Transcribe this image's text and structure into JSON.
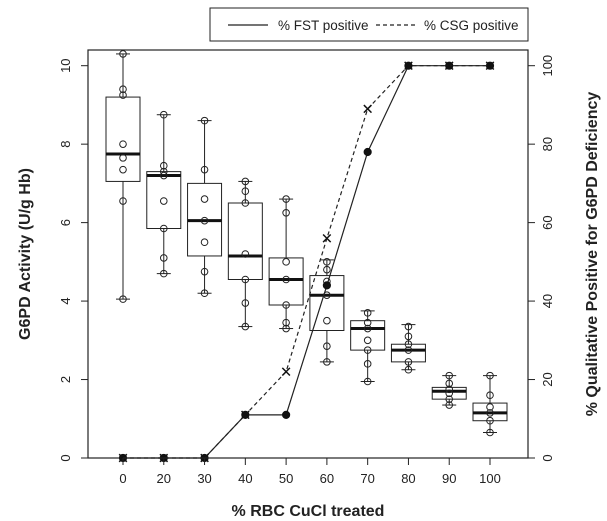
{
  "chart_data": {
    "type": "boxplot",
    "title": "",
    "xlabel": "% RBC CuCl treated",
    "ylabel_left": "G6PD Activity (U/g Hb)",
    "ylabel_right": "% Qualitative Positive for G6PD Deficiency",
    "categories": [
      "0",
      "20",
      "30",
      "40",
      "50",
      "60",
      "70",
      "80",
      "90",
      "100"
    ],
    "y_left_lim": [
      0,
      10.4
    ],
    "y_left_ticks": [
      "0",
      "2",
      "4",
      "6",
      "8",
      "10"
    ],
    "y_right_lim": [
      0,
      104
    ],
    "y_right_ticks": [
      "0",
      "20",
      "40",
      "60",
      "80",
      "100"
    ],
    "grid": false,
    "legend_position": "top-right",
    "boxes": [
      {
        "category": "0",
        "min": 4.05,
        "q1": 7.05,
        "median": 7.75,
        "q3": 9.2,
        "max": 10.3,
        "points": [
          4.05,
          6.55,
          7.35,
          7.65,
          8.0,
          9.25,
          9.4,
          10.3
        ]
      },
      {
        "category": "20",
        "min": 4.7,
        "q1": 5.85,
        "median": 7.2,
        "q3": 7.3,
        "max": 8.75,
        "points": [
          4.7,
          5.1,
          5.85,
          6.55,
          7.2,
          7.3,
          7.45,
          8.75
        ]
      },
      {
        "category": "30",
        "min": 4.2,
        "q1": 5.15,
        "median": 6.05,
        "q3": 7.0,
        "max": 8.6,
        "points": [
          4.2,
          4.75,
          5.5,
          6.05,
          6.6,
          7.35,
          8.6
        ]
      },
      {
        "category": "40",
        "min": 3.35,
        "q1": 4.55,
        "median": 5.15,
        "q3": 6.5,
        "max": 7.05,
        "points": [
          3.35,
          3.95,
          4.55,
          5.2,
          6.5,
          6.8,
          7.05
        ]
      },
      {
        "category": "50",
        "min": 3.3,
        "q1": 3.9,
        "median": 4.55,
        "q3": 5.1,
        "max": 6.6,
        "points": [
          3.3,
          3.45,
          3.9,
          4.55,
          5.0,
          6.25,
          6.6
        ]
      },
      {
        "category": "60",
        "min": 2.45,
        "q1": 3.25,
        "median": 4.15,
        "q3": 4.65,
        "max": 5.05,
        "points": [
          2.45,
          2.85,
          3.5,
          4.15,
          4.5,
          4.8,
          5.0
        ]
      },
      {
        "category": "70",
        "min": 1.95,
        "q1": 2.75,
        "median": 3.3,
        "q3": 3.5,
        "max": 3.75,
        "points": [
          1.95,
          2.4,
          2.75,
          3.0,
          3.3,
          3.45,
          3.7
        ]
      },
      {
        "category": "80",
        "min": 2.25,
        "q1": 2.45,
        "median": 2.75,
        "q3": 2.9,
        "max": 3.4,
        "points": [
          2.25,
          2.45,
          2.75,
          2.9,
          3.1,
          3.35
        ]
      },
      {
        "category": "90",
        "min": 1.35,
        "q1": 1.5,
        "median": 1.7,
        "q3": 1.8,
        "max": 2.1,
        "points": [
          1.35,
          1.5,
          1.65,
          1.75,
          1.9,
          2.1
        ]
      },
      {
        "category": "100",
        "min": 0.65,
        "q1": 0.95,
        "median": 1.15,
        "q3": 1.4,
        "max": 2.1,
        "points": [
          0.65,
          0.95,
          1.15,
          1.3,
          1.6,
          2.1
        ]
      }
    ],
    "series": [
      {
        "name": "% FST positive",
        "line": "solid",
        "marker": "filled-circle",
        "axis": "right",
        "values": [
          0,
          0,
          0,
          11,
          11,
          44,
          78,
          100,
          100,
          100
        ]
      },
      {
        "name": "% CSG positive",
        "line": "dashed",
        "marker": "x",
        "axis": "right",
        "values": [
          0,
          0,
          0,
          11,
          22,
          56,
          89,
          100,
          100,
          100
        ]
      }
    ]
  }
}
